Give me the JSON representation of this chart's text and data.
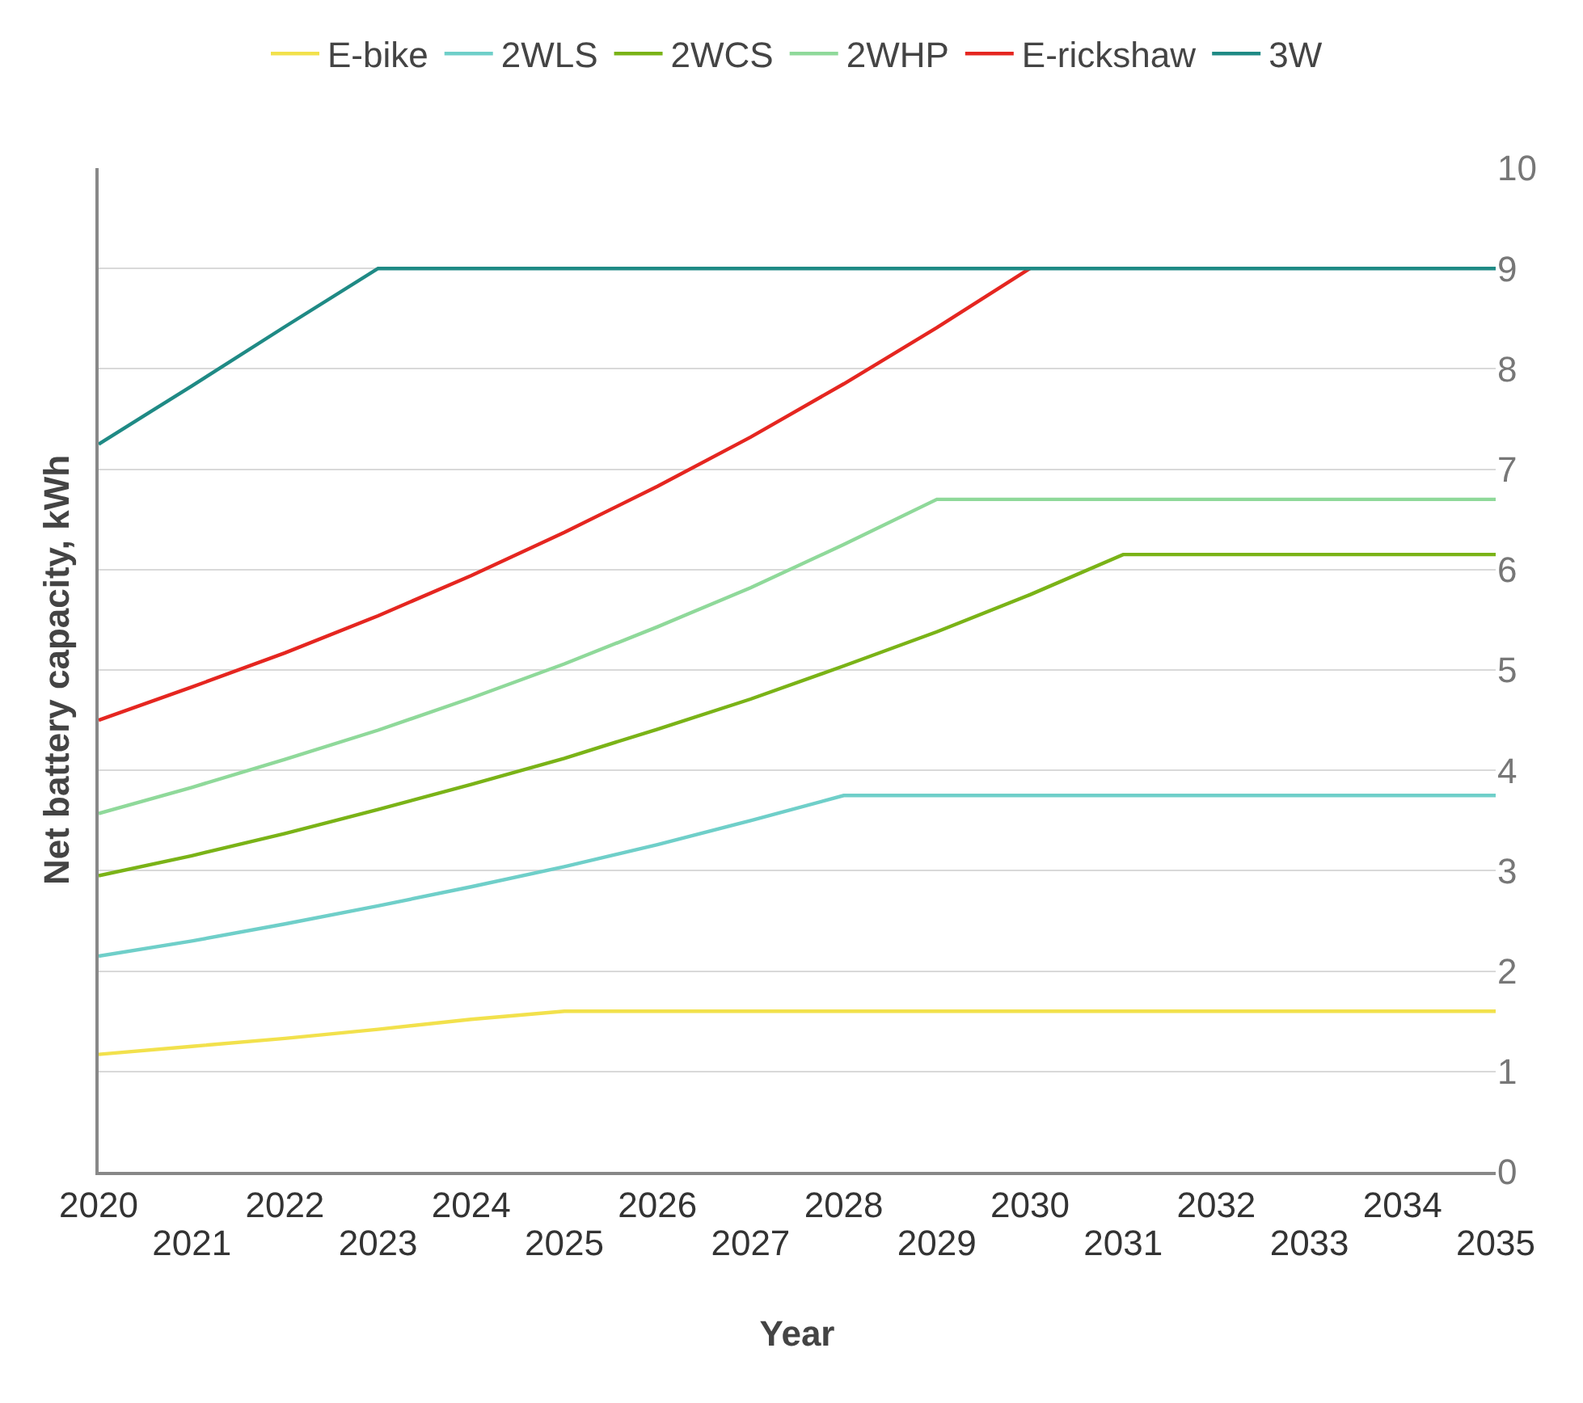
{
  "chart_data": {
    "type": "line",
    "xlabel": "Year",
    "ylabel": "Net battery capacity, kWh",
    "x": [
      2020,
      2021,
      2022,
      2023,
      2024,
      2025,
      2026,
      2027,
      2028,
      2029,
      2030,
      2031,
      2032,
      2033,
      2034,
      2035
    ],
    "series": [
      {
        "name": "E-bike",
        "color": "#f2e14c",
        "values": [
          1.17,
          1.25,
          1.33,
          1.42,
          1.52,
          1.6,
          1.6,
          1.6,
          1.6,
          1.6,
          1.6,
          1.6,
          1.6,
          1.6,
          1.6,
          1.6
        ]
      },
      {
        "name": "2WLS",
        "color": "#6fcfc9",
        "values": [
          2.15,
          2.3,
          2.47,
          2.65,
          2.84,
          3.04,
          3.26,
          3.5,
          3.75,
          3.75,
          3.75,
          3.75,
          3.75,
          3.75,
          3.75,
          3.75
        ]
      },
      {
        "name": "2WCS",
        "color": "#7ab317",
        "values": [
          2.95,
          3.15,
          3.37,
          3.61,
          3.86,
          4.12,
          4.41,
          4.71,
          5.04,
          5.38,
          5.75,
          6.15,
          6.15,
          6.15,
          6.15,
          6.15
        ]
      },
      {
        "name": "2WHP",
        "color": "#8fd99a",
        "values": [
          3.57,
          3.83,
          4.11,
          4.4,
          4.72,
          5.06,
          5.43,
          5.82,
          6.25,
          6.7,
          6.7,
          6.7,
          6.7,
          6.7,
          6.7,
          6.7
        ]
      },
      {
        "name": "E-rickshaw",
        "color": "#e52620",
        "values": [
          4.5,
          4.83,
          5.17,
          5.54,
          5.94,
          6.37,
          6.83,
          7.32,
          7.85,
          8.41,
          9.0,
          null,
          null,
          null,
          null,
          null
        ]
      },
      {
        "name": "3W",
        "color": "#1f8a85",
        "values": [
          7.25,
          7.83,
          8.42,
          9.0,
          9.0,
          9.0,
          9.0,
          9.0,
          9.0,
          9.0,
          9.0,
          9.0,
          9.0,
          9.0,
          9.0,
          9.0
        ]
      }
    ],
    "xlim": [
      2020,
      2035
    ],
    "xticks": [
      2020,
      2022,
      2024,
      2026,
      2028,
      2030,
      2032,
      2034
    ],
    "x2lim": [
      2020,
      2035
    ],
    "x2ticks": [
      2021,
      2023,
      2025,
      2027,
      2029,
      2031,
      2033,
      2035
    ],
    "ylim": [
      0,
      10
    ],
    "yticks": [
      0,
      1,
      2,
      3,
      4,
      5,
      6,
      7,
      8,
      9,
      10
    ],
    "grid": "y",
    "legend": "top",
    "marker": "none",
    "line_style": "solid"
  }
}
